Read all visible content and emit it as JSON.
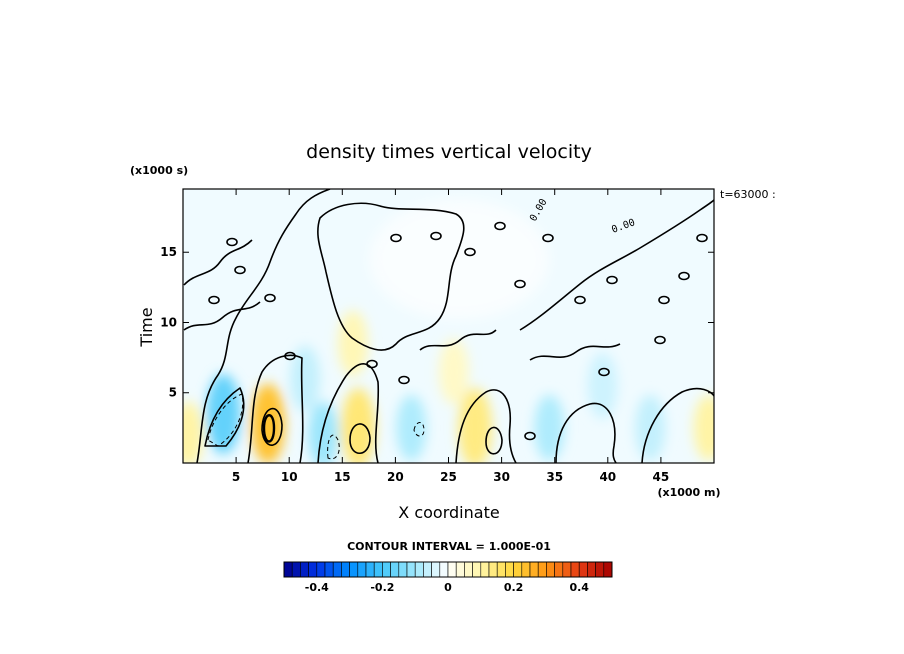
{
  "chart_data": {
    "type": "heatmap",
    "title": "density times vertical velocity",
    "xlabel": "X coordinate",
    "ylabel": "Time",
    "x_unit": "(x1000 m)",
    "y_unit": "(x1000 s)",
    "xlim": [
      0,
      50
    ],
    "ylim": [
      0,
      19.5
    ],
    "x_ticks": [
      5,
      10,
      15,
      20,
      25,
      30,
      35,
      40,
      45
    ],
    "y_ticks": [
      5,
      10,
      15
    ],
    "time_label": "t=63000 :",
    "contour_interval_label": "CONTOUR INTERVAL = 1.000E-01",
    "contour_labels": [
      "0.00",
      "0.00"
    ],
    "colorbar": {
      "min": -0.5,
      "max": 0.5,
      "n_colors": 40,
      "ticks": [
        -0.4,
        -0.2,
        0,
        0.2,
        0.4
      ],
      "tick_labels": [
        "-0.4",
        "-0.2",
        "0",
        "0.2",
        "0.4"
      ]
    },
    "features": [
      {
        "kind": "positive",
        "x": 8.0,
        "t": 2.8,
        "peak": 0.22
      },
      {
        "kind": "positive",
        "x": 16.5,
        "t": 2.5,
        "peak": 0.14
      },
      {
        "kind": "positive",
        "x": 16.0,
        "t": 8.5,
        "peak": 0.08
      },
      {
        "kind": "positive",
        "x": 27.5,
        "t": 2.5,
        "peak": 0.13
      },
      {
        "kind": "positive",
        "x": 25.5,
        "t": 6.5,
        "peak": 0.06
      },
      {
        "kind": "positive",
        "x": 0.5,
        "t": 2.0,
        "peak": 0.1
      },
      {
        "kind": "positive",
        "x": 49.5,
        "t": 2.5,
        "peak": 0.1
      },
      {
        "kind": "negative",
        "x": 3.8,
        "t": 3.5,
        "peak": -0.16
      },
      {
        "kind": "negative",
        "x": 13.2,
        "t": 2.0,
        "peak": -0.1
      },
      {
        "kind": "negative",
        "x": 11.5,
        "t": 6.0,
        "peak": -0.06
      },
      {
        "kind": "negative",
        "x": 21.5,
        "t": 2.5,
        "peak": -0.08
      },
      {
        "kind": "negative",
        "x": 34.5,
        "t": 2.5,
        "peak": -0.08
      },
      {
        "kind": "negative",
        "x": 39.5,
        "t": 5.5,
        "peak": -0.05
      },
      {
        "kind": "negative",
        "x": 44.0,
        "t": 2.5,
        "peak": -0.06
      }
    ]
  }
}
